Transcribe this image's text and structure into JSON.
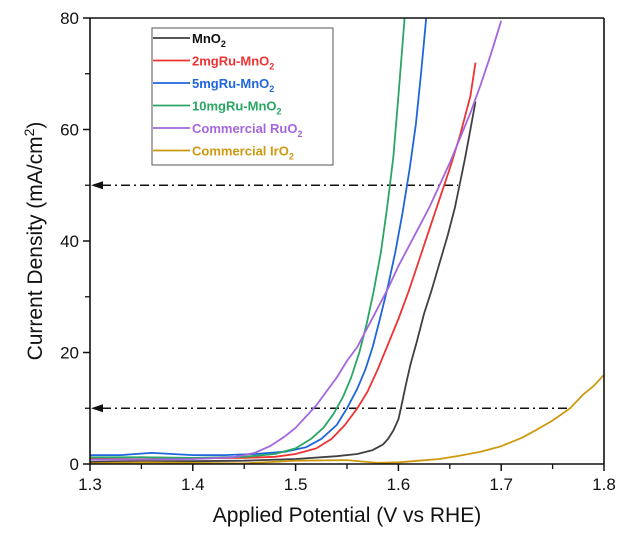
{
  "chart_data": {
    "type": "line",
    "title": "",
    "xlabel": "Applied Potential (V vs RHE)",
    "ylabel_main": "Current Density (mA/cm",
    "ylabel_sup": "2",
    "ylabel_end": ")",
    "xlim": [
      1.3,
      1.8
    ],
    "ylim": [
      0,
      80
    ],
    "xticks": [
      1.3,
      1.4,
      1.5,
      1.6,
      1.7,
      1.8
    ],
    "xtick_labels": [
      "1.3",
      "1.4",
      "1.5",
      "1.6",
      "1.7",
      "1.8"
    ],
    "yticks": [
      0,
      20,
      40,
      60,
      80
    ],
    "ytick_labels": [
      "0",
      "20",
      "40",
      "60",
      "80"
    ],
    "y_minor_ticks": [
      10,
      30,
      50,
      70
    ],
    "x_minor_ticks": [
      1.35,
      1.45,
      1.55,
      1.65,
      1.75
    ],
    "grid": false,
    "legend_position": "top-left",
    "reference_lines": [
      {
        "y": 50,
        "x_end": 1.658,
        "style": "dash-dot",
        "arrow": "left"
      },
      {
        "y": 10,
        "x_end": 1.767,
        "style": "dash-dot",
        "arrow": "left"
      }
    ],
    "series": [
      {
        "name": "MnO",
        "sub": "2",
        "prefix": "",
        "color": "#404040",
        "x": [
          1.3,
          1.35,
          1.4,
          1.45,
          1.5,
          1.54,
          1.56,
          1.575,
          1.585,
          1.59,
          1.595,
          1.6,
          1.603,
          1.607,
          1.612,
          1.618,
          1.625,
          1.632,
          1.64,
          1.648,
          1.655,
          1.66,
          1.665,
          1.67,
          1.675
        ],
        "y": [
          0.4,
          0.5,
          0.5,
          0.6,
          0.9,
          1.4,
          1.8,
          2.5,
          3.5,
          4.5,
          6,
          8,
          10.5,
          14,
          18,
          22,
          27,
          31,
          36,
          41,
          46,
          50.5,
          55,
          60,
          65
        ]
      },
      {
        "name": "2mgRu-MnO",
        "sub": "2",
        "color": "#ee3333",
        "x": [
          1.3,
          1.35,
          1.4,
          1.45,
          1.48,
          1.5,
          1.52,
          1.535,
          1.548,
          1.56,
          1.57,
          1.58,
          1.59,
          1.6,
          1.61,
          1.62,
          1.63,
          1.64,
          1.65,
          1.66,
          1.67,
          1.675
        ],
        "y": [
          1.0,
          1.2,
          1.0,
          1.1,
          1.3,
          1.8,
          2.8,
          4.5,
          7,
          10,
          13,
          17,
          21.5,
          26,
          31,
          36.5,
          42,
          47.5,
          53,
          59,
          66,
          72
        ]
      },
      {
        "name": "5mgRu-MnO",
        "sub": "2",
        "color": "#1f66dd",
        "x": [
          1.3,
          1.33,
          1.36,
          1.4,
          1.43,
          1.46,
          1.49,
          1.51,
          1.525,
          1.54,
          1.55,
          1.56,
          1.568,
          1.575,
          1.582,
          1.59,
          1.597,
          1.604,
          1.611,
          1.617,
          1.622,
          1.627
        ],
        "y": [
          1.6,
          1.6,
          2.0,
          1.6,
          1.6,
          1.8,
          2.2,
          3.0,
          4.5,
          7,
          10,
          13.5,
          17,
          21,
          26,
          32,
          38,
          45,
          53,
          61,
          70,
          80
        ]
      },
      {
        "name": "10mgRu-MnO",
        "sub": "2",
        "color": "#2aa664",
        "x": [
          1.3,
          1.35,
          1.4,
          1.45,
          1.48,
          1.5,
          1.515,
          1.527,
          1.537,
          1.546,
          1.554,
          1.562,
          1.569,
          1.576,
          1.583,
          1.589,
          1.595,
          1.6,
          1.606
        ],
        "y": [
          1.2,
          1.2,
          1.1,
          1.3,
          1.8,
          2.8,
          4.5,
          6.5,
          9,
          12,
          15.5,
          20,
          25,
          31,
          38,
          46,
          55,
          66,
          80
        ]
      },
      {
        "name": "Commercial RuO",
        "sub": "2",
        "color": "#a466dd",
        "x": [
          1.3,
          1.35,
          1.4,
          1.44,
          1.46,
          1.475,
          1.49,
          1.5,
          1.51,
          1.52,
          1.53,
          1.54,
          1.55,
          1.56,
          1.57,
          1.58,
          1.59,
          1.6,
          1.61,
          1.62,
          1.63,
          1.64,
          1.65,
          1.66,
          1.67,
          1.68,
          1.69,
          1.7
        ],
        "y": [
          0.8,
          0.8,
          0.9,
          1.2,
          2.0,
          3.2,
          5.0,
          6.5,
          8.5,
          10.5,
          13,
          15.5,
          18.5,
          21,
          24.5,
          28,
          31.5,
          35.5,
          39,
          42.5,
          46,
          50,
          54,
          58.5,
          63,
          68,
          73.5,
          79.5
        ]
      },
      {
        "name": "Commercial IrO",
        "sub": "2",
        "color": "#cc9911",
        "x": [
          1.3,
          1.35,
          1.4,
          1.45,
          1.5,
          1.55,
          1.58,
          1.6,
          1.62,
          1.64,
          1.66,
          1.68,
          1.7,
          1.72,
          1.735,
          1.75,
          1.767,
          1.78,
          1.79,
          1.8
        ],
        "y": [
          0.1,
          0.3,
          0.2,
          0.1,
          0.6,
          0.7,
          0.2,
          0.3,
          0.6,
          0.9,
          1.5,
          2.2,
          3.2,
          4.7,
          6.2,
          7.8,
          10,
          12.5,
          14,
          16
        ]
      }
    ]
  }
}
